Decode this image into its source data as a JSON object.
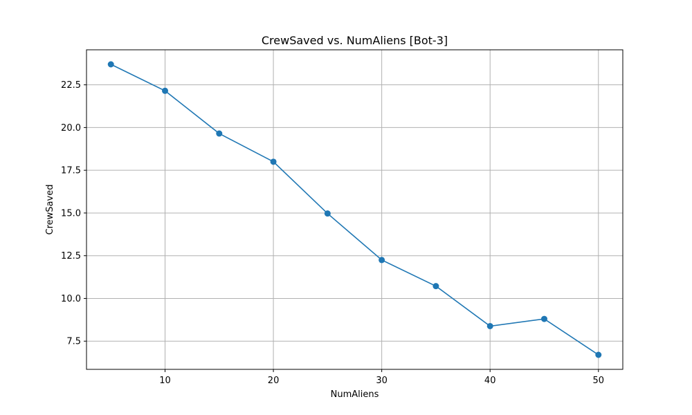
{
  "chart_data": {
    "type": "line",
    "title": "CrewSaved vs. NumAliens [Bot-3]",
    "xlabel": "NumAliens",
    "ylabel": "CrewSaved",
    "x": [
      5,
      10,
      15,
      20,
      25,
      30,
      35,
      40,
      45,
      50
    ],
    "series": [
      {
        "values": [
          23.7,
          22.15,
          19.65,
          18.0,
          14.97,
          12.25,
          10.72,
          8.38,
          8.8,
          6.7
        ],
        "color": "#1f77b4"
      }
    ],
    "xlim": [
      2.75,
      52.25
    ],
    "ylim": [
      5.85,
      24.55
    ],
    "xticks": [
      10,
      20,
      30,
      40,
      50
    ],
    "xtick_labels": [
      "10",
      "20",
      "30",
      "40",
      "50"
    ],
    "yticks": [
      7.5,
      10.0,
      12.5,
      15.0,
      17.5,
      20.0,
      22.5
    ],
    "ytick_labels": [
      "7.5",
      "10.0",
      "12.5",
      "15.0",
      "17.5",
      "20.0",
      "22.5"
    ],
    "grid": true,
    "marker": "circle"
  }
}
